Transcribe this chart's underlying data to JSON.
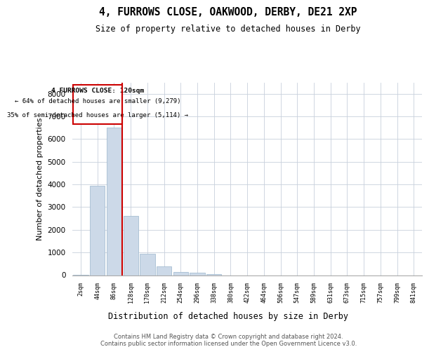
{
  "title": "4, FURROWS CLOSE, OAKWOOD, DERBY, DE21 2XP",
  "subtitle": "Size of property relative to detached houses in Derby",
  "xlabel": "Distribution of detached houses by size in Derby",
  "ylabel": "Number of detached properties",
  "footer_line1": "Contains HM Land Registry data © Crown copyright and database right 2024.",
  "footer_line2": "Contains public sector information licensed under the Open Government Licence v3.0.",
  "bar_color": "#ccd9e8",
  "bar_edge_color": "#9ab5cc",
  "grid_color": "#c8d0dc",
  "annotation_box_color": "#cc0000",
  "vline_color": "#cc0000",
  "categories": [
    "2sqm",
    "44sqm",
    "86sqm",
    "128sqm",
    "170sqm",
    "212sqm",
    "254sqm",
    "296sqm",
    "338sqm",
    "380sqm",
    "422sqm",
    "464sqm",
    "506sqm",
    "547sqm",
    "589sqm",
    "631sqm",
    "673sqm",
    "715sqm",
    "757sqm",
    "799sqm",
    "841sqm"
  ],
  "values": [
    30,
    3950,
    6500,
    2600,
    950,
    380,
    130,
    100,
    60,
    0,
    0,
    0,
    0,
    0,
    0,
    0,
    0,
    0,
    0,
    0,
    0
  ],
  "vline_position": 2.5,
  "annotation_text_line1": "4 FURROWS CLOSE: 120sqm",
  "annotation_text_line2": "← 64% of detached houses are smaller (9,279)",
  "annotation_text_line3": "35% of semi-detached houses are larger (5,114) →",
  "ylim": [
    0,
    8500
  ],
  "yticks": [
    0,
    1000,
    2000,
    3000,
    4000,
    5000,
    6000,
    7000,
    8000
  ]
}
